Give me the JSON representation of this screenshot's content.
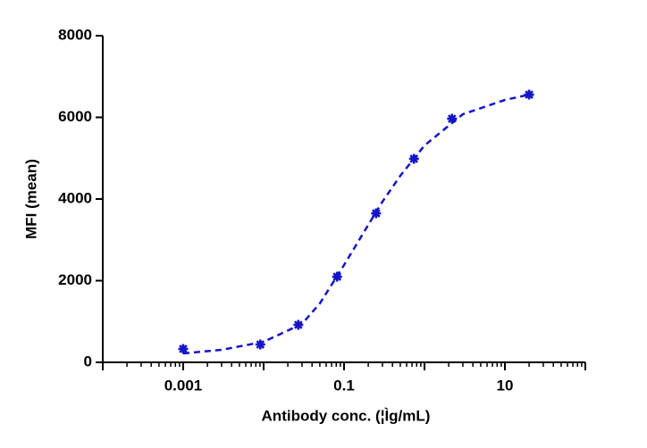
{
  "chart_data": {
    "type": "scatter",
    "x_label": "Antibody conc. (¦Ìg/mL)",
    "y_label": "MFI (mean)",
    "x_scale": "log",
    "xlim": [
      0.0001,
      100
    ],
    "ylim": [
      0,
      8000
    ],
    "xticks": [
      0.001,
      0.1,
      10
    ],
    "xmajorticks_unlabeled": [
      0.0001,
      0.01,
      1,
      100
    ],
    "xminorticks": [
      0.0002,
      0.0003,
      0.0004,
      0.0005,
      0.0006,
      0.0007,
      0.0008,
      0.0009,
      0.002,
      0.003,
      0.004,
      0.005,
      0.006,
      0.007,
      0.008,
      0.009,
      0.02,
      0.03,
      0.04,
      0.05,
      0.06,
      0.07,
      0.08,
      0.09,
      0.2,
      0.3,
      0.4,
      0.5,
      0.6,
      0.7,
      0.8,
      0.9,
      2,
      3,
      4,
      5,
      6,
      7,
      8,
      9,
      20,
      30,
      40,
      50,
      60,
      70,
      80,
      90
    ],
    "yticks": [
      0,
      2000,
      4000,
      6000,
      8000
    ],
    "series": [
      {
        "type": "scatter",
        "color": "#1414c8",
        "x": [
          0.001,
          0.0091,
          0.027,
          0.082,
          0.25,
          0.74,
          2.2,
          20
        ],
        "values": [
          328,
          437,
          918,
          2098,
          3650,
          4984,
          5967,
          6557
        ]
      },
      {
        "type": "line",
        "color": "#1414c8",
        "dashed": true,
        "x": [
          0.001,
          0.003,
          0.01,
          0.03,
          0.05,
          0.1,
          0.2,
          0.3,
          0.5,
          1,
          3,
          10,
          20
        ],
        "values": [
          219,
          306,
          503,
          940,
          1443,
          2383,
          3366,
          3934,
          4568,
          5311,
          6077,
          6426,
          6557
        ]
      }
    ]
  }
}
